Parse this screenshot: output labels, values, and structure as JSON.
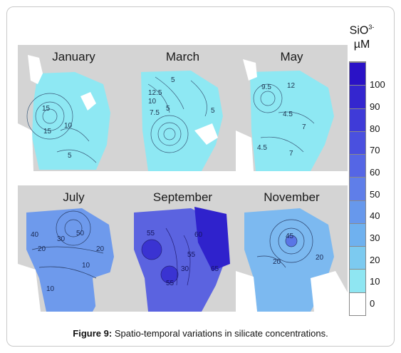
{
  "figure": {
    "caption_label": "Figure 9:",
    "caption_text": "Spatio-temporal variations in silicate concentrations."
  },
  "legend": {
    "title_line1": "SiO",
    "title_sup": "3-",
    "title_line2": "µM",
    "ticks": [
      "100",
      "90",
      "80",
      "70",
      "60",
      "50",
      "40",
      "30",
      "20",
      "10",
      "0"
    ],
    "colors": [
      "#ffffff",
      "#8fe6f2",
      "#7ccaf0",
      "#6fb1ef",
      "#6798ec",
      "#5f7ee9",
      "#5566e5",
      "#4a50df",
      "#3f3bd8",
      "#3426cf",
      "#2a12c6"
    ]
  },
  "maps": [
    {
      "month": "January",
      "labels": [
        "15",
        "15",
        "10",
        "5"
      ],
      "fill": "#8ee8f3"
    },
    {
      "month": "March",
      "labels": [
        "12.5",
        "10",
        "7.5",
        "5",
        "5",
        "5"
      ],
      "fill": "#8ee8f3"
    },
    {
      "month": "May",
      "labels": [
        "9.5",
        "12",
        "4.5",
        "7",
        "4.5",
        "7"
      ],
      "fill": "#8ee8f3"
    },
    {
      "month": "July",
      "labels": [
        "40",
        "30",
        "50",
        "20",
        "20",
        "10",
        "10"
      ],
      "fill": "#6e9aec"
    },
    {
      "month": "September",
      "labels": [
        "55",
        "60",
        "55",
        "30",
        "55",
        "65"
      ],
      "fill": "#5b63e0"
    },
    {
      "month": "November",
      "labels": [
        "45",
        "20",
        "20"
      ],
      "fill": "#7cb9f0"
    }
  ],
  "colors": {
    "land": "#d4d4d4",
    "frame_border": "#c9c9c9"
  }
}
